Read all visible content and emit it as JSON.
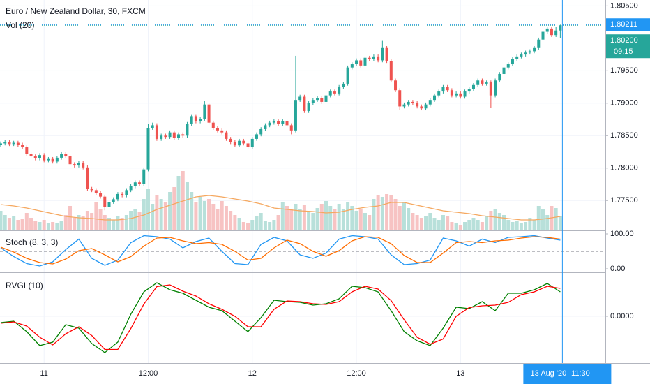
{
  "chart_data": {
    "type": "candlestick",
    "title": "Euro / New Zealand Dollar, 30, FXCM",
    "up_color": "#26a69a",
    "down_color": "#ef5350",
    "ylim": [
      1.7704,
      1.8059
    ],
    "yticks": [
      {
        "value": 1.805,
        "label": "1.80500"
      },
      {
        "value": 1.795,
        "label": "1.79500"
      },
      {
        "value": 1.79,
        "label": "1.79000"
      },
      {
        "value": 1.785,
        "label": "1.78500"
      },
      {
        "value": 1.78,
        "label": "1.78000"
      },
      {
        "value": 1.775,
        "label": "1.77500"
      }
    ],
    "xticks": [
      {
        "value": 10,
        "label": "11"
      },
      {
        "value": 34,
        "label": "12:00"
      },
      {
        "value": 58,
        "label": "12"
      },
      {
        "value": 82,
        "label": "12:00"
      },
      {
        "value": 106,
        "label": "13"
      }
    ],
    "grid": true,
    "candles": {
      "open": [
        1.7836,
        1.7838,
        1.784,
        1.7837,
        1.7839,
        1.7836,
        1.7832,
        1.7822,
        1.7818,
        1.7815,
        1.782,
        1.7812,
        1.7814,
        1.781,
        1.7816,
        1.7822,
        1.7818,
        1.7806,
        1.7804,
        1.7808,
        1.7801,
        1.7768,
        1.7766,
        1.7762,
        1.7756,
        1.774,
        1.7748,
        1.7752,
        1.776,
        1.7758,
        1.7766,
        1.7772,
        1.7778,
        1.7775,
        1.7798,
        1.7862,
        1.7866,
        1.7845,
        1.785,
        1.7848,
        1.7855,
        1.7846,
        1.7852,
        1.785,
        1.7868,
        1.788,
        1.7872,
        1.7876,
        1.7898,
        1.787,
        1.7862,
        1.7858,
        1.7855,
        1.7845,
        1.784,
        1.7835,
        1.7842,
        1.7838,
        1.7832,
        1.7845,
        1.7852,
        1.786,
        1.7866,
        1.787,
        1.7872,
        1.7868,
        1.7872,
        1.7866,
        1.7858,
        1.7905,
        1.791,
        1.7888,
        1.79,
        1.7905,
        1.7908,
        1.7902,
        1.7912,
        1.7918,
        1.7915,
        1.7925,
        1.793,
        1.7955,
        1.796,
        1.7966,
        1.7958,
        1.797,
        1.7968,
        1.7972,
        1.7966,
        1.7985,
        1.7965,
        1.7935,
        1.792,
        1.7895,
        1.7898,
        1.7902,
        1.79,
        1.7895,
        1.7892,
        1.7898,
        1.7905,
        1.7912,
        1.7918,
        1.7925,
        1.792,
        1.7912,
        1.7915,
        1.791,
        1.7918,
        1.7922,
        1.7928,
        1.7935,
        1.793,
        1.7932,
        1.7912,
        1.7935,
        1.7945,
        1.7955,
        1.796,
        1.7968,
        1.7972,
        1.7975,
        1.7978,
        1.798,
        1.7985,
        1.7998,
        1.801,
        1.8015,
        1.8005,
        1.8012
      ],
      "high": [
        1.7841,
        1.7843,
        1.7843,
        1.7842,
        1.7842,
        1.7839,
        1.7835,
        1.7825,
        1.7821,
        1.7823,
        1.7823,
        1.7817,
        1.7817,
        1.7819,
        1.7825,
        1.7825,
        1.7821,
        1.7809,
        1.7811,
        1.7811,
        1.7804,
        1.7771,
        1.7769,
        1.7765,
        1.7759,
        1.7751,
        1.7755,
        1.7763,
        1.7763,
        1.7769,
        1.7775,
        1.7781,
        1.7781,
        1.7801,
        1.7868,
        1.787,
        1.7869,
        1.7853,
        1.7853,
        1.7858,
        1.7858,
        1.7855,
        1.7855,
        1.7871,
        1.7883,
        1.7883,
        1.7879,
        1.7904,
        1.7901,
        1.7873,
        1.7865,
        1.7861,
        1.7858,
        1.7848,
        1.7843,
        1.7845,
        1.7845,
        1.7841,
        1.7848,
        1.7855,
        1.7863,
        1.7869,
        1.7873,
        1.7875,
        1.7875,
        1.7875,
        1.7875,
        1.7869,
        1.7973,
        1.7913,
        1.7913,
        1.7903,
        1.7908,
        1.7911,
        1.7911,
        1.7915,
        1.7921,
        1.7921,
        1.7928,
        1.7933,
        1.7958,
        1.7963,
        1.7969,
        1.7969,
        1.7973,
        1.7973,
        1.7975,
        1.7975,
        1.7996,
        1.7988,
        1.7968,
        1.7938,
        1.7923,
        1.7901,
        1.7905,
        1.7905,
        1.7903,
        1.7898,
        1.7901,
        1.7908,
        1.7915,
        1.7921,
        1.7928,
        1.7928,
        1.7923,
        1.7918,
        1.7918,
        1.7921,
        1.7925,
        1.7931,
        1.7938,
        1.7938,
        1.7935,
        1.7935,
        1.7938,
        1.7948,
        1.7958,
        1.7963,
        1.7971,
        1.7975,
        1.7978,
        1.7981,
        1.7983,
        1.7988,
        1.8001,
        1.8013,
        1.8018,
        1.8018,
        1.8018,
        1.8021
      ],
      "low": [
        1.7833,
        1.7835,
        1.7834,
        1.7834,
        1.7833,
        1.7829,
        1.7819,
        1.7815,
        1.7812,
        1.7812,
        1.7809,
        1.7809,
        1.7807,
        1.7807,
        1.7813,
        1.7815,
        1.7803,
        1.7801,
        1.7801,
        1.7798,
        1.7765,
        1.7763,
        1.7759,
        1.7753,
        1.7735,
        1.7737,
        1.7745,
        1.7749,
        1.7755,
        1.7755,
        1.7763,
        1.7769,
        1.7772,
        1.7772,
        1.7795,
        1.7859,
        1.7842,
        1.7842,
        1.7845,
        1.7845,
        1.7843,
        1.7843,
        1.7847,
        1.7847,
        1.7865,
        1.7869,
        1.7869,
        1.7873,
        1.7867,
        1.7859,
        1.7855,
        1.7852,
        1.7842,
        1.7837,
        1.7832,
        1.7832,
        1.7835,
        1.7829,
        1.7829,
        1.7842,
        1.7849,
        1.7857,
        1.7863,
        1.7867,
        1.7865,
        1.7865,
        1.7863,
        1.7852,
        1.7855,
        1.7902,
        1.7885,
        1.7885,
        1.7897,
        1.7902,
        1.7899,
        1.7899,
        1.7909,
        1.7912,
        1.7912,
        1.7922,
        1.7927,
        1.7952,
        1.7957,
        1.7955,
        1.7955,
        1.7965,
        1.7965,
        1.7963,
        1.7963,
        1.7962,
        1.7932,
        1.7917,
        1.789,
        1.7892,
        1.7895,
        1.7897,
        1.7892,
        1.7889,
        1.7889,
        1.7895,
        1.7902,
        1.7909,
        1.7915,
        1.7917,
        1.7909,
        1.7909,
        1.7907,
        1.7907,
        1.7915,
        1.7919,
        1.7925,
        1.7927,
        1.7927,
        1.7893,
        1.7909,
        1.7932,
        1.7942,
        1.7952,
        1.7957,
        1.7965,
        1.7969,
        1.7972,
        1.7975,
        1.7977,
        1.7982,
        1.7995,
        1.8007,
        1.8002,
        1.8002,
        1.8
      ],
      "close": [
        1.7838,
        1.784,
        1.7837,
        1.7839,
        1.7836,
        1.7832,
        1.7822,
        1.7818,
        1.7815,
        1.782,
        1.7812,
        1.7814,
        1.781,
        1.7816,
        1.7822,
        1.7818,
        1.7806,
        1.7804,
        1.7808,
        1.7801,
        1.7768,
        1.7766,
        1.7762,
        1.7756,
        1.774,
        1.7748,
        1.7752,
        1.776,
        1.7758,
        1.7766,
        1.7772,
        1.7778,
        1.7775,
        1.7798,
        1.7862,
        1.7866,
        1.7845,
        1.785,
        1.7848,
        1.7855,
        1.7846,
        1.7852,
        1.785,
        1.7868,
        1.788,
        1.7872,
        1.7876,
        1.7898,
        1.787,
        1.7862,
        1.7858,
        1.7855,
        1.7845,
        1.784,
        1.7835,
        1.7842,
        1.7838,
        1.7832,
        1.7845,
        1.7852,
        1.786,
        1.7866,
        1.787,
        1.7872,
        1.7868,
        1.7872,
        1.7866,
        1.7858,
        1.7905,
        1.791,
        1.7888,
        1.79,
        1.7905,
        1.7908,
        1.7902,
        1.7912,
        1.7918,
        1.7915,
        1.7925,
        1.793,
        1.7955,
        1.796,
        1.7966,
        1.7958,
        1.797,
        1.7968,
        1.7972,
        1.7966,
        1.7985,
        1.7965,
        1.7935,
        1.792,
        1.7895,
        1.7898,
        1.7902,
        1.79,
        1.7895,
        1.7892,
        1.7898,
        1.7905,
        1.7912,
        1.7918,
        1.7925,
        1.792,
        1.7912,
        1.7915,
        1.791,
        1.7918,
        1.7922,
        1.7928,
        1.7935,
        1.793,
        1.7932,
        1.7912,
        1.7935,
        1.7945,
        1.7955,
        1.796,
        1.7968,
        1.7972,
        1.7975,
        1.7978,
        1.798,
        1.7985,
        1.7998,
        1.801,
        1.8015,
        1.8005,
        1.8012,
        1.802
      ]
    },
    "last_price": {
      "value": 1.802,
      "label": "1.80200",
      "countdown": "09:15",
      "color": "#26a69a"
    },
    "crosshair": {
      "price": {
        "value": 1.80211,
        "label": "1.80211"
      },
      "date": "13 Aug '20",
      "time": "11:30",
      "color": "#2196f3"
    },
    "volume": {
      "label": "Vol (20)",
      "up_color": "#b8e0da",
      "down_color": "#f7c3c3",
      "ma_color": "#f5a860",
      "values": [
        28,
        22,
        18,
        20,
        15,
        16,
        25,
        18,
        14,
        12,
        15,
        10,
        12,
        10,
        14,
        22,
        35,
        18,
        22,
        20,
        28,
        25,
        40,
        30,
        22,
        18,
        15,
        20,
        18,
        22,
        28,
        30,
        26,
        45,
        60,
        38,
        50,
        45,
        40,
        55,
        62,
        78,
        85,
        70,
        55,
        40,
        48,
        42,
        45,
        38,
        30,
        42,
        35,
        28,
        22,
        18,
        12,
        10,
        15,
        20,
        25,
        14,
        12,
        15,
        22,
        40,
        35,
        30,
        38,
        30,
        36,
        28,
        25,
        32,
        38,
        42,
        35,
        30,
        38,
        30,
        40,
        35,
        28,
        30,
        25,
        22,
        45,
        50,
        48,
        52,
        50,
        45,
        35,
        40,
        32,
        25,
        22,
        18,
        20,
        25,
        18,
        15,
        22,
        20,
        12,
        10,
        8,
        12,
        15,
        18,
        15,
        12,
        20,
        28,
        30,
        25,
        22,
        15,
        12,
        14,
        10,
        12,
        18,
        15,
        35,
        30,
        22,
        35,
        32,
        20
      ],
      "ma": [
        37,
        35,
        32,
        28,
        24,
        20,
        18,
        17,
        15,
        15,
        17,
        22,
        30,
        36,
        42,
        48,
        50,
        48,
        45,
        42,
        38,
        32,
        30,
        28,
        27,
        25,
        26,
        30,
        33,
        35,
        40,
        40,
        36,
        32,
        28,
        26,
        24,
        21,
        19,
        17,
        15,
        15,
        17,
        20
      ]
    },
    "stoch": {
      "label": "Stoch (8, 3, 3)",
      "ylim": [
        -10,
        106
      ],
      "yticks": [
        {
          "value": 100,
          "label": "100.00"
        },
        {
          "value": 0,
          "label": "0.00"
        }
      ],
      "hline": 50,
      "series": [
        {
          "color": "#2196f3",
          "values": [
            60,
            35,
            15,
            8,
            20,
            55,
            85,
            30,
            10,
            25,
            75,
            95,
            92,
            85,
            60,
            78,
            88,
            50,
            15,
            12,
            70,
            90,
            80,
            40,
            30,
            45,
            85,
            95,
            92,
            85,
            40,
            12,
            15,
            25,
            88,
            80,
            65,
            85,
            75,
            90,
            92,
            95,
            88,
            82
          ]
        },
        {
          "color": "#ff6d00",
          "values": [
            62,
            48,
            30,
            18,
            14,
            28,
            52,
            58,
            40,
            20,
            35,
            65,
            88,
            90,
            80,
            72,
            75,
            70,
            50,
            25,
            30,
            60,
            82,
            72,
            50,
            36,
            52,
            80,
            92,
            90,
            72,
            38,
            18,
            18,
            45,
            75,
            78,
            75,
            80,
            82,
            88,
            92,
            90,
            85
          ]
        }
      ]
    },
    "rvgi": {
      "label": "RVGI (10)",
      "ylim": [
        -0.134,
        0.122
      ],
      "yticks": [
        {
          "value": 0,
          "label": "0.0000"
        }
      ],
      "series": [
        {
          "color": "#008000",
          "values": [
            -0.018,
            -0.014,
            -0.044,
            -0.084,
            -0.074,
            -0.024,
            -0.034,
            -0.078,
            -0.104,
            -0.074,
            0.006,
            0.07,
            0.096,
            0.076,
            0.066,
            0.046,
            0.026,
            0.016,
            -0.014,
            -0.044,
            -0.004,
            0.046,
            0.042,
            0.04,
            0.032,
            0.036,
            0.05,
            0.086,
            0.082,
            0.07,
            0.016,
            -0.044,
            -0.07,
            -0.084,
            -0.034,
            0.026,
            0.022,
            0.042,
            0.016,
            0.066,
            0.066,
            0.076,
            0.094,
            0.07
          ]
        },
        {
          "color": "#ff0000",
          "values": [
            -0.02,
            -0.016,
            -0.028,
            -0.06,
            -0.082,
            -0.05,
            -0.03,
            -0.055,
            -0.095,
            -0.095,
            -0.035,
            0.035,
            0.085,
            0.09,
            0.072,
            0.058,
            0.036,
            0.02,
            0.0,
            -0.03,
            -0.03,
            0.02,
            0.044,
            0.042,
            0.036,
            0.034,
            0.042,
            0.07,
            0.086,
            0.078,
            0.045,
            -0.01,
            -0.06,
            -0.08,
            -0.065,
            0.0,
            0.025,
            0.03,
            0.032,
            0.04,
            0.062,
            0.07,
            0.086,
            0.08
          ]
        }
      ]
    }
  }
}
